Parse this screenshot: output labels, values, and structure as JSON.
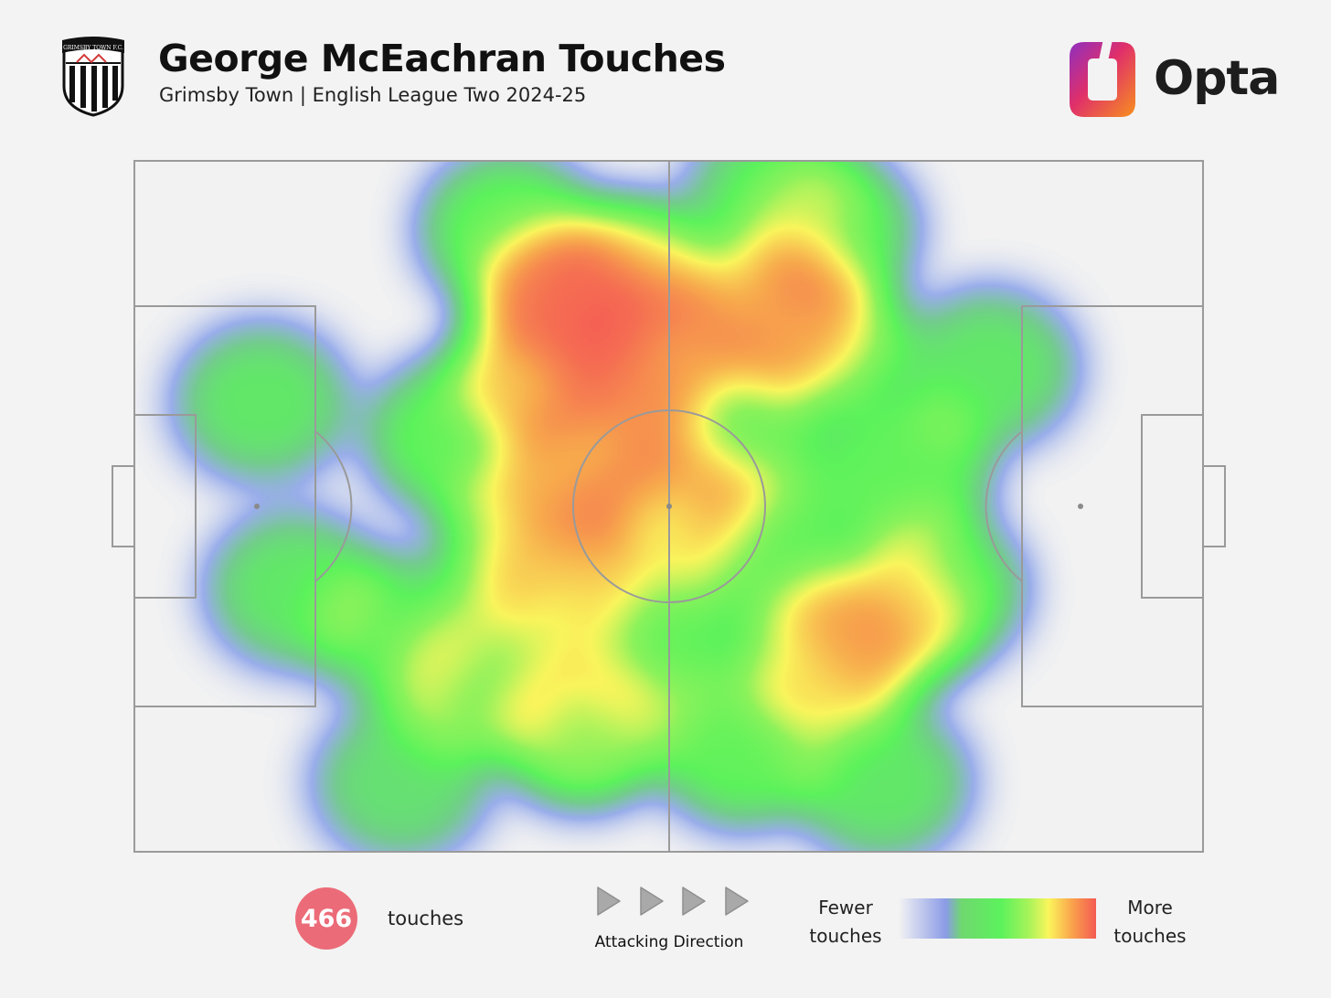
{
  "header": {
    "title": "George McEachran Touches",
    "subtitle": "Grimsby Town | English League Two 2024-25",
    "brand": "Opta",
    "crest_text": "GRIMSBY TOWN F.C."
  },
  "footer": {
    "touch_count": "466",
    "touch_label": "touches",
    "direction_label": "Attacking Direction",
    "legend_low": "Fewer touches",
    "legend_high": "More touches"
  },
  "colors": {
    "background": "#f3f3f3",
    "pitch_lines": "#9a9a9a",
    "badge": "#ec6b78",
    "heat_low": "#8a9be6",
    "heat_mid": "#5cf25c",
    "heat_high": "#f45a52"
  },
  "chart_data": {
    "type": "heatmap",
    "title": "George McEachran Touches",
    "subtitle": "Grimsby Town | English League Two 2024-25",
    "total_touches": 466,
    "pitch": {
      "length": 100,
      "width": 100
    },
    "attacking_direction": "left-to-right",
    "legend": {
      "low": "Fewer touches",
      "high": "More touches"
    },
    "scale": [
      "blue",
      "green",
      "yellow",
      "red"
    ],
    "hotspots": [
      {
        "x": 40,
        "y": 80,
        "intensity": 1.0
      },
      {
        "x": 46,
        "y": 83,
        "intensity": 0.75
      },
      {
        "x": 38,
        "y": 70,
        "intensity": 0.7
      },
      {
        "x": 47,
        "y": 72,
        "intensity": 0.55
      },
      {
        "x": 60,
        "y": 78,
        "intensity": 0.7
      },
      {
        "x": 64,
        "y": 75,
        "intensity": 0.55
      },
      {
        "x": 65,
        "y": 28,
        "intensity": 0.7
      },
      {
        "x": 70,
        "y": 33,
        "intensity": 0.5
      },
      {
        "x": 50,
        "y": 50,
        "intensity": 0.6
      },
      {
        "x": 42,
        "y": 55,
        "intensity": 0.5
      },
      {
        "x": 40,
        "y": 40,
        "intensity": 0.5
      },
      {
        "x": 42,
        "y": 18,
        "intensity": 0.55
      },
      {
        "x": 32,
        "y": 25,
        "intensity": 0.4
      },
      {
        "x": 37,
        "y": 46,
        "intensity": 0.45
      },
      {
        "x": 25,
        "y": 32,
        "intensity": 0.2
      },
      {
        "x": 50,
        "y": 75,
        "intensity": 0.4
      },
      {
        "x": 56,
        "y": 60,
        "intensity": 0.35
      },
      {
        "x": 58,
        "y": 45,
        "intensity": 0.3
      },
      {
        "x": 48,
        "y": 30,
        "intensity": 0.3
      },
      {
        "x": 57,
        "y": 15,
        "intensity": 0.3
      },
      {
        "x": 72,
        "y": 55,
        "intensity": 0.3
      },
      {
        "x": 75,
        "y": 38,
        "intensity": 0.3
      },
      {
        "x": 35,
        "y": 90,
        "intensity": 0.3
      },
      {
        "x": 65,
        "y": 90,
        "intensity": 0.25
      },
      {
        "x": 12,
        "y": 65,
        "intensity": 0.2
      },
      {
        "x": 15,
        "y": 38,
        "intensity": 0.2
      },
      {
        "x": 80,
        "y": 70,
        "intensity": 0.2
      },
      {
        "x": 70,
        "y": 10,
        "intensity": 0.2
      },
      {
        "x": 25,
        "y": 10,
        "intensity": 0.15
      },
      {
        "x": 60,
        "y": 95,
        "intensity": 0.2
      },
      {
        "x": 30,
        "y": 60,
        "intensity": 0.3
      },
      {
        "x": 45,
        "y": 62,
        "intensity": 0.4
      }
    ]
  }
}
